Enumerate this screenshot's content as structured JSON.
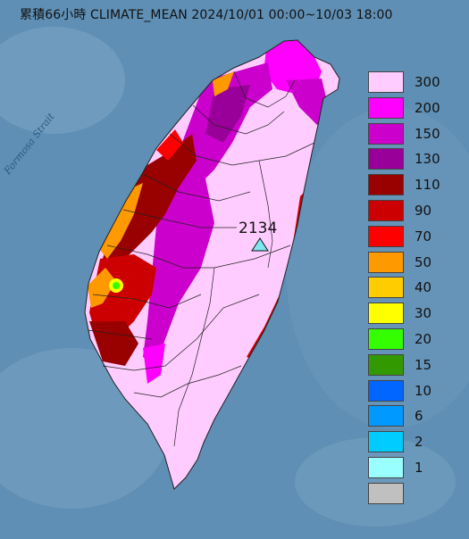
{
  "title": "累積66小時 CLIMATE_MEAN 2024/10/01 00:00~10/03 18:00",
  "strait_label": "Formosa Strait",
  "peak": {
    "value": "2134",
    "marker_color": "#7fe7ef"
  },
  "legend": [
    {
      "label": "300",
      "color": "#ffccff"
    },
    {
      "label": "200",
      "color": "#ff00ff"
    },
    {
      "label": "150",
      "color": "#cc00cc"
    },
    {
      "label": "130",
      "color": "#990099"
    },
    {
      "label": "110",
      "color": "#990000"
    },
    {
      "label": "90",
      "color": "#cc0000"
    },
    {
      "label": "70",
      "color": "#ff0000"
    },
    {
      "label": "50",
      "color": "#ff9900"
    },
    {
      "label": "40",
      "color": "#ffcc00"
    },
    {
      "label": "30",
      "color": "#ffff00"
    },
    {
      "label": "20",
      "color": "#33ff00"
    },
    {
      "label": "15",
      "color": "#339900"
    },
    {
      "label": "10",
      "color": "#0066ff"
    },
    {
      "label": "6",
      "color": "#0099ff"
    },
    {
      "label": "2",
      "color": "#00ccff"
    },
    {
      "label": "1",
      "color": "#99ffff"
    },
    {
      "label": "",
      "color": "#c0c0c0"
    }
  ]
}
